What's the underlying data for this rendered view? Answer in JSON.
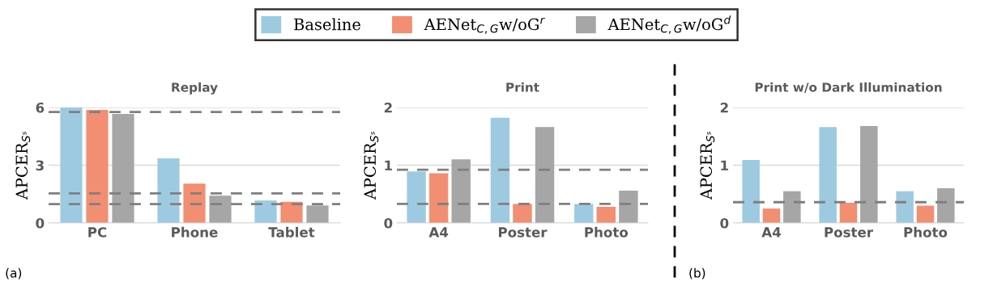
{
  "chart_data": [
    {
      "type": "bar",
      "title": "Replay",
      "ylabel": "APCER$_{Sˢ}$",
      "categories": [
        "PC",
        "Phone",
        "Tablet"
      ],
      "series": [
        {
          "name": "Baseline",
          "color": "#9ecae1",
          "values": [
            6.0,
            3.36,
            1.17
          ]
        },
        {
          "name": "AENet$_{C,G}$w/oG$^{r}$",
          "color": "#f28e72",
          "values": [
            5.87,
            2.05,
            1.1
          ]
        },
        {
          "name": "AENet$_{C,G}$w/oG$^{d}$",
          "color": "#a6a6a6",
          "values": [
            5.66,
            1.42,
            0.91
          ]
        }
      ],
      "ylim": [
        0,
        6
      ],
      "yticks": [
        0,
        3,
        6
      ],
      "grid": "y",
      "legend": "top",
      "ref_lines": [
        {
          "axis": "y",
          "value": 5.76,
          "color": "#7f7f7f",
          "line_style": "dashed"
        },
        {
          "axis": "y",
          "value": 1.54,
          "color": "#7f7f7f",
          "line_style": "dashed"
        },
        {
          "axis": "y",
          "value": 0.98,
          "color": "#7f7f7f",
          "line_style": "dashed"
        }
      ],
      "annotations": [
        "(a)"
      ]
    },
    {
      "type": "bar",
      "title": "Print",
      "ylabel": "APCER$_{Sˢ}$",
      "categories": [
        "A4",
        "Poster",
        "Photo"
      ],
      "series": [
        {
          "color": "#9ecae1",
          "values": [
            0.89,
            1.82,
            0.33
          ]
        },
        {
          "color": "#f28e72",
          "values": [
            0.86,
            0.33,
            0.28
          ]
        },
        {
          "color": "#a6a6a6",
          "values": [
            1.1,
            1.66,
            0.56
          ]
        }
      ],
      "ylim": [
        0,
        2
      ],
      "yticks": [
        0,
        1,
        2
      ],
      "grid": "y",
      "ref_lines": [
        {
          "axis": "y",
          "value": 0.92,
          "color": "#7f7f7f",
          "line_style": "dashed"
        },
        {
          "axis": "y",
          "value": 0.33,
          "color": "#7f7f7f",
          "line_style": "dashed"
        }
      ]
    },
    {
      "type": "bar",
      "title": "Print w/o Dark Illumination",
      "ylabel": "APCER$_{Sˢ}$",
      "categories": [
        "A4",
        "Poster",
        "Photo"
      ],
      "series": [
        {
          "color": "#9ecae1",
          "values": [
            1.09,
            1.66,
            0.55
          ]
        },
        {
          "color": "#f28e72",
          "values": [
            0.25,
            0.35,
            0.3
          ]
        },
        {
          "color": "#a6a6a6",
          "values": [
            0.55,
            1.68,
            0.6
          ]
        }
      ],
      "ylim": [
        0,
        2
      ],
      "yticks": [
        0,
        1,
        2
      ],
      "grid": "y",
      "ref_lines": [
        {
          "axis": "y",
          "value": 0.36,
          "color": "#7f7f7f",
          "line_style": "dashed"
        }
      ],
      "annotations": [
        "(b)"
      ]
    }
  ]
}
